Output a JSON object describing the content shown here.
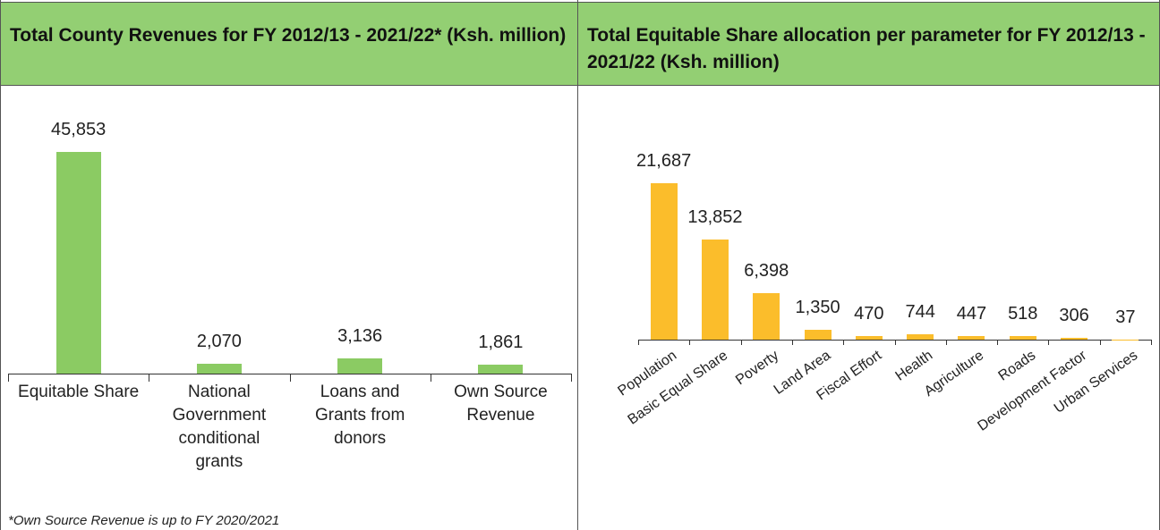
{
  "chart_data": [
    {
      "type": "bar",
      "title": "Total County Revenues for FY 2012/13 - 2021/22* (Ksh. million)",
      "categories": [
        "Equitable Share",
        "National Government conditional grants",
        "Loans and Grants from donors",
        "Own Source Revenue"
      ],
      "values": [
        45853,
        2070,
        3136,
        1861
      ],
      "value_labels": [
        "45,853",
        "2,070",
        "3,136",
        "1,861"
      ],
      "color": "#8bcb63",
      "note": "*Own Source Revenue is up to FY 2020/2021"
    },
    {
      "type": "bar",
      "title": "Total Equitable Share allocation per parameter for FY 2012/13 - 2021/22 (Ksh. million)",
      "categories": [
        "Population",
        "Basic Equal Share",
        "Poverty",
        "Land Area",
        "Fiscal Effort",
        "Health",
        "Agriculture",
        "Roads",
        "Development Factor",
        "Urban Services"
      ],
      "values": [
        21687,
        13852,
        6398,
        1350,
        470,
        744,
        447,
        518,
        306,
        37
      ],
      "value_labels": [
        "21,687",
        "13,852",
        "6,398",
        "1,350",
        "470",
        "744",
        "447",
        "518",
        "306",
        "37"
      ],
      "color": "#fbbd2b",
      "label_rotation": -35
    }
  ]
}
